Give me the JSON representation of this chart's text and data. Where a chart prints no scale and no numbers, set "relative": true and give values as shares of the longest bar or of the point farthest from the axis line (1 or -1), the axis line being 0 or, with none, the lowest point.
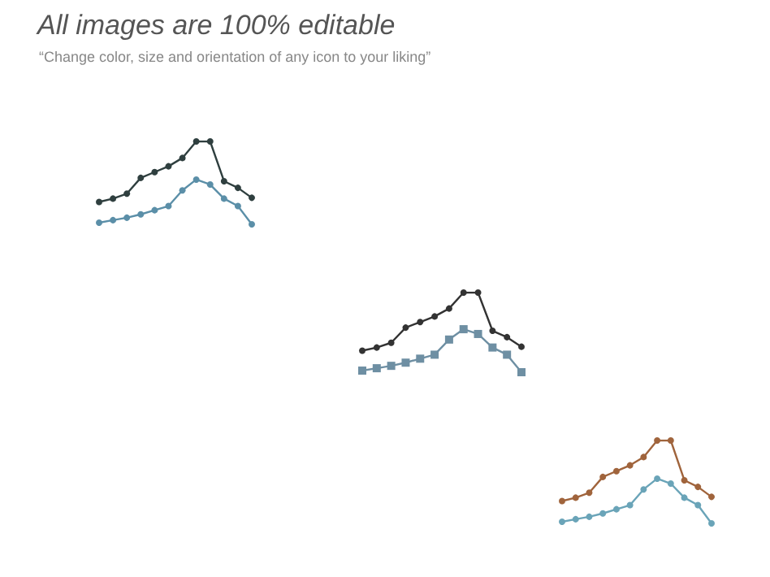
{
  "chart_data": [
    {
      "type": "line",
      "relative": true,
      "title": "All images are 100% editable",
      "subtitle": "“Change color, size and orientation of any icon to your liking”",
      "categories": [
        null,
        null,
        null,
        null,
        null,
        null,
        null,
        null,
        null,
        null,
        null,
        null
      ],
      "marker": "circle",
      "series": [
        {
          "color": "#2f3f3f",
          "values": [
            0.27,
            0.31,
            0.37,
            0.56,
            0.63,
            0.7,
            0.8,
            1,
            1,
            0.52,
            0.44,
            0.32
          ]
        },
        {
          "color": "#5b8fa8",
          "values": [
            0.02,
            0.05,
            0.08,
            0.12,
            0.17,
            0.22,
            0.41,
            0.54,
            0.48,
            0.31,
            0.22,
            0
          ]
        }
      ]
    },
    {
      "type": "line",
      "relative": true,
      "categories": [
        null,
        null,
        null,
        null,
        null,
        null,
        null,
        null,
        null,
        null,
        null,
        null
      ],
      "series": [
        {
          "color": "#333333",
          "marker": "circle",
          "values": [
            0.27,
            0.31,
            0.37,
            0.56,
            0.63,
            0.7,
            0.8,
            1,
            1,
            0.52,
            0.44,
            0.32
          ]
        },
        {
          "color": "#6e8fa3",
          "marker": "square",
          "values": [
            0.02,
            0.05,
            0.08,
            0.12,
            0.17,
            0.22,
            0.41,
            0.54,
            0.48,
            0.31,
            0.22,
            0
          ]
        }
      ]
    },
    {
      "type": "line",
      "relative": true,
      "categories": [
        null,
        null,
        null,
        null,
        null,
        null,
        null,
        null,
        null,
        null,
        null,
        null
      ],
      "marker": "circle",
      "series": [
        {
          "color": "#a0643c",
          "values": [
            0.27,
            0.31,
            0.37,
            0.56,
            0.63,
            0.7,
            0.8,
            1,
            1,
            0.52,
            0.44,
            0.32
          ]
        },
        {
          "color": "#6aa4b8",
          "values": [
            0.02,
            0.05,
            0.08,
            0.12,
            0.17,
            0.22,
            0.41,
            0.54,
            0.48,
            0.31,
            0.22,
            0
          ]
        }
      ]
    }
  ]
}
